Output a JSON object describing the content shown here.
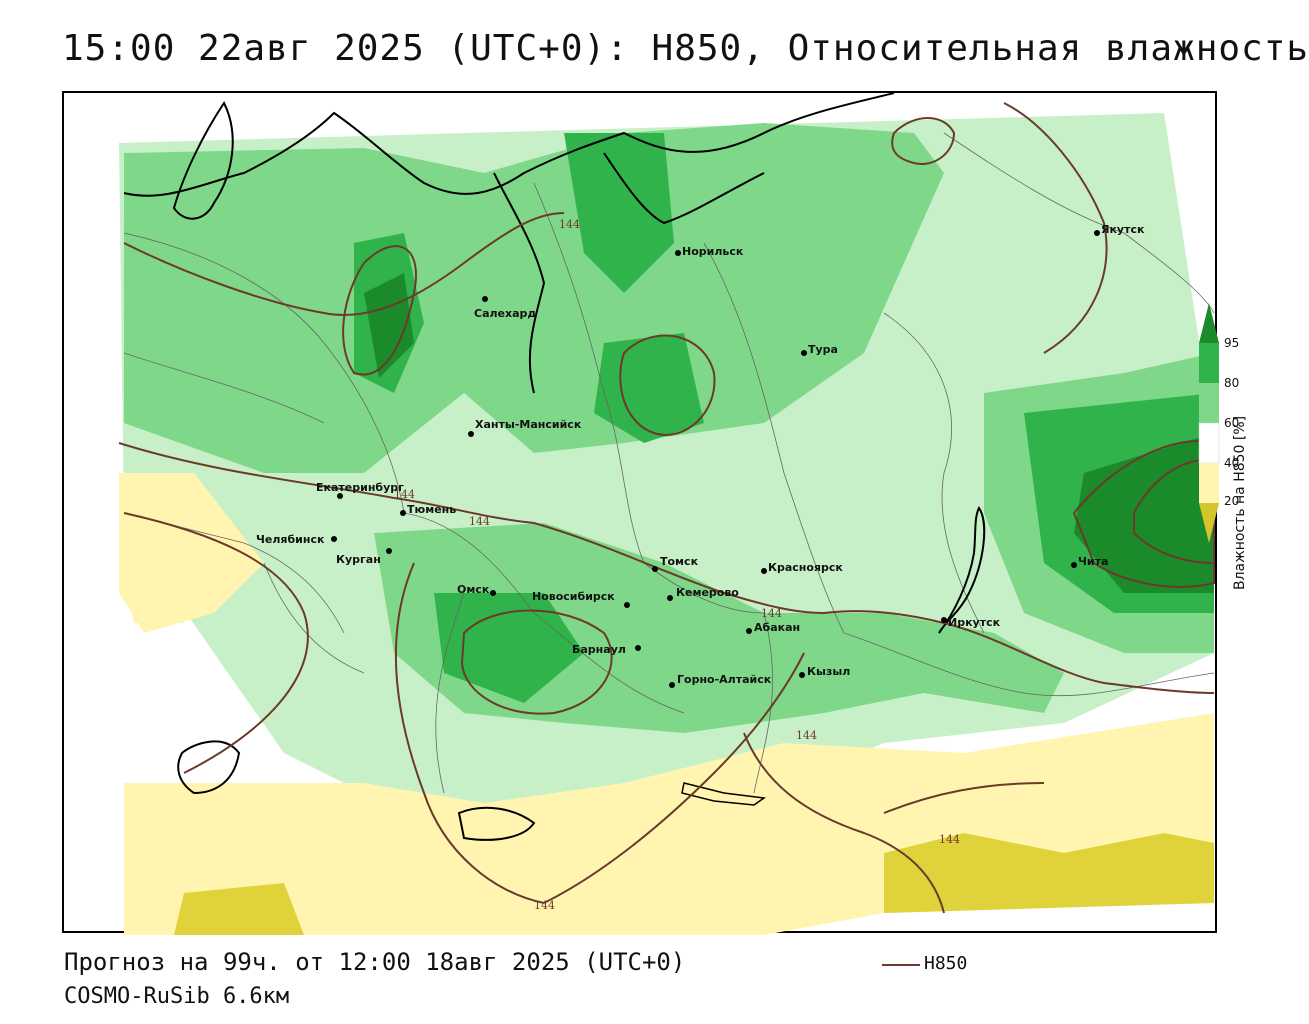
{
  "title": "15:00 22авг 2025 (UTC+0): H850, Относительная влажность",
  "footer": {
    "forecast": "Прогноз на 99ч. от 12:00 18авг 2025 (UTC+0)",
    "model": "COSMO-RuSib 6.6км",
    "legend_label": "H850"
  },
  "colorbar": {
    "title": "Влажность на H850 [%]",
    "ticks": [
      "95",
      "80",
      "60",
      "40",
      "20"
    ],
    "colors": {
      "c95": "#1a8a2a",
      "c80": "#2fb34a",
      "c60": "#7fd88a",
      "c50": "#c8f0c8",
      "c40": "#ffffff",
      "c20": "#fff5b0",
      "c10": "#e0d23a"
    }
  },
  "contour_color": "#6b3a2a",
  "contour_label": "144",
  "cities": [
    "Норильск",
    "Якутск",
    "Салехард",
    "Тура",
    "Ханты-Мансийск",
    "Екатеринбург",
    "Тюмень",
    "Челябинск",
    "Курган",
    "Омск",
    "Новосибирск",
    "Томск",
    "Красноярск",
    "Кемерово",
    "Абакан",
    "Барнаул",
    "Горно-Алтайск",
    "Кызыл",
    "Иркутск",
    "Чита"
  ]
}
